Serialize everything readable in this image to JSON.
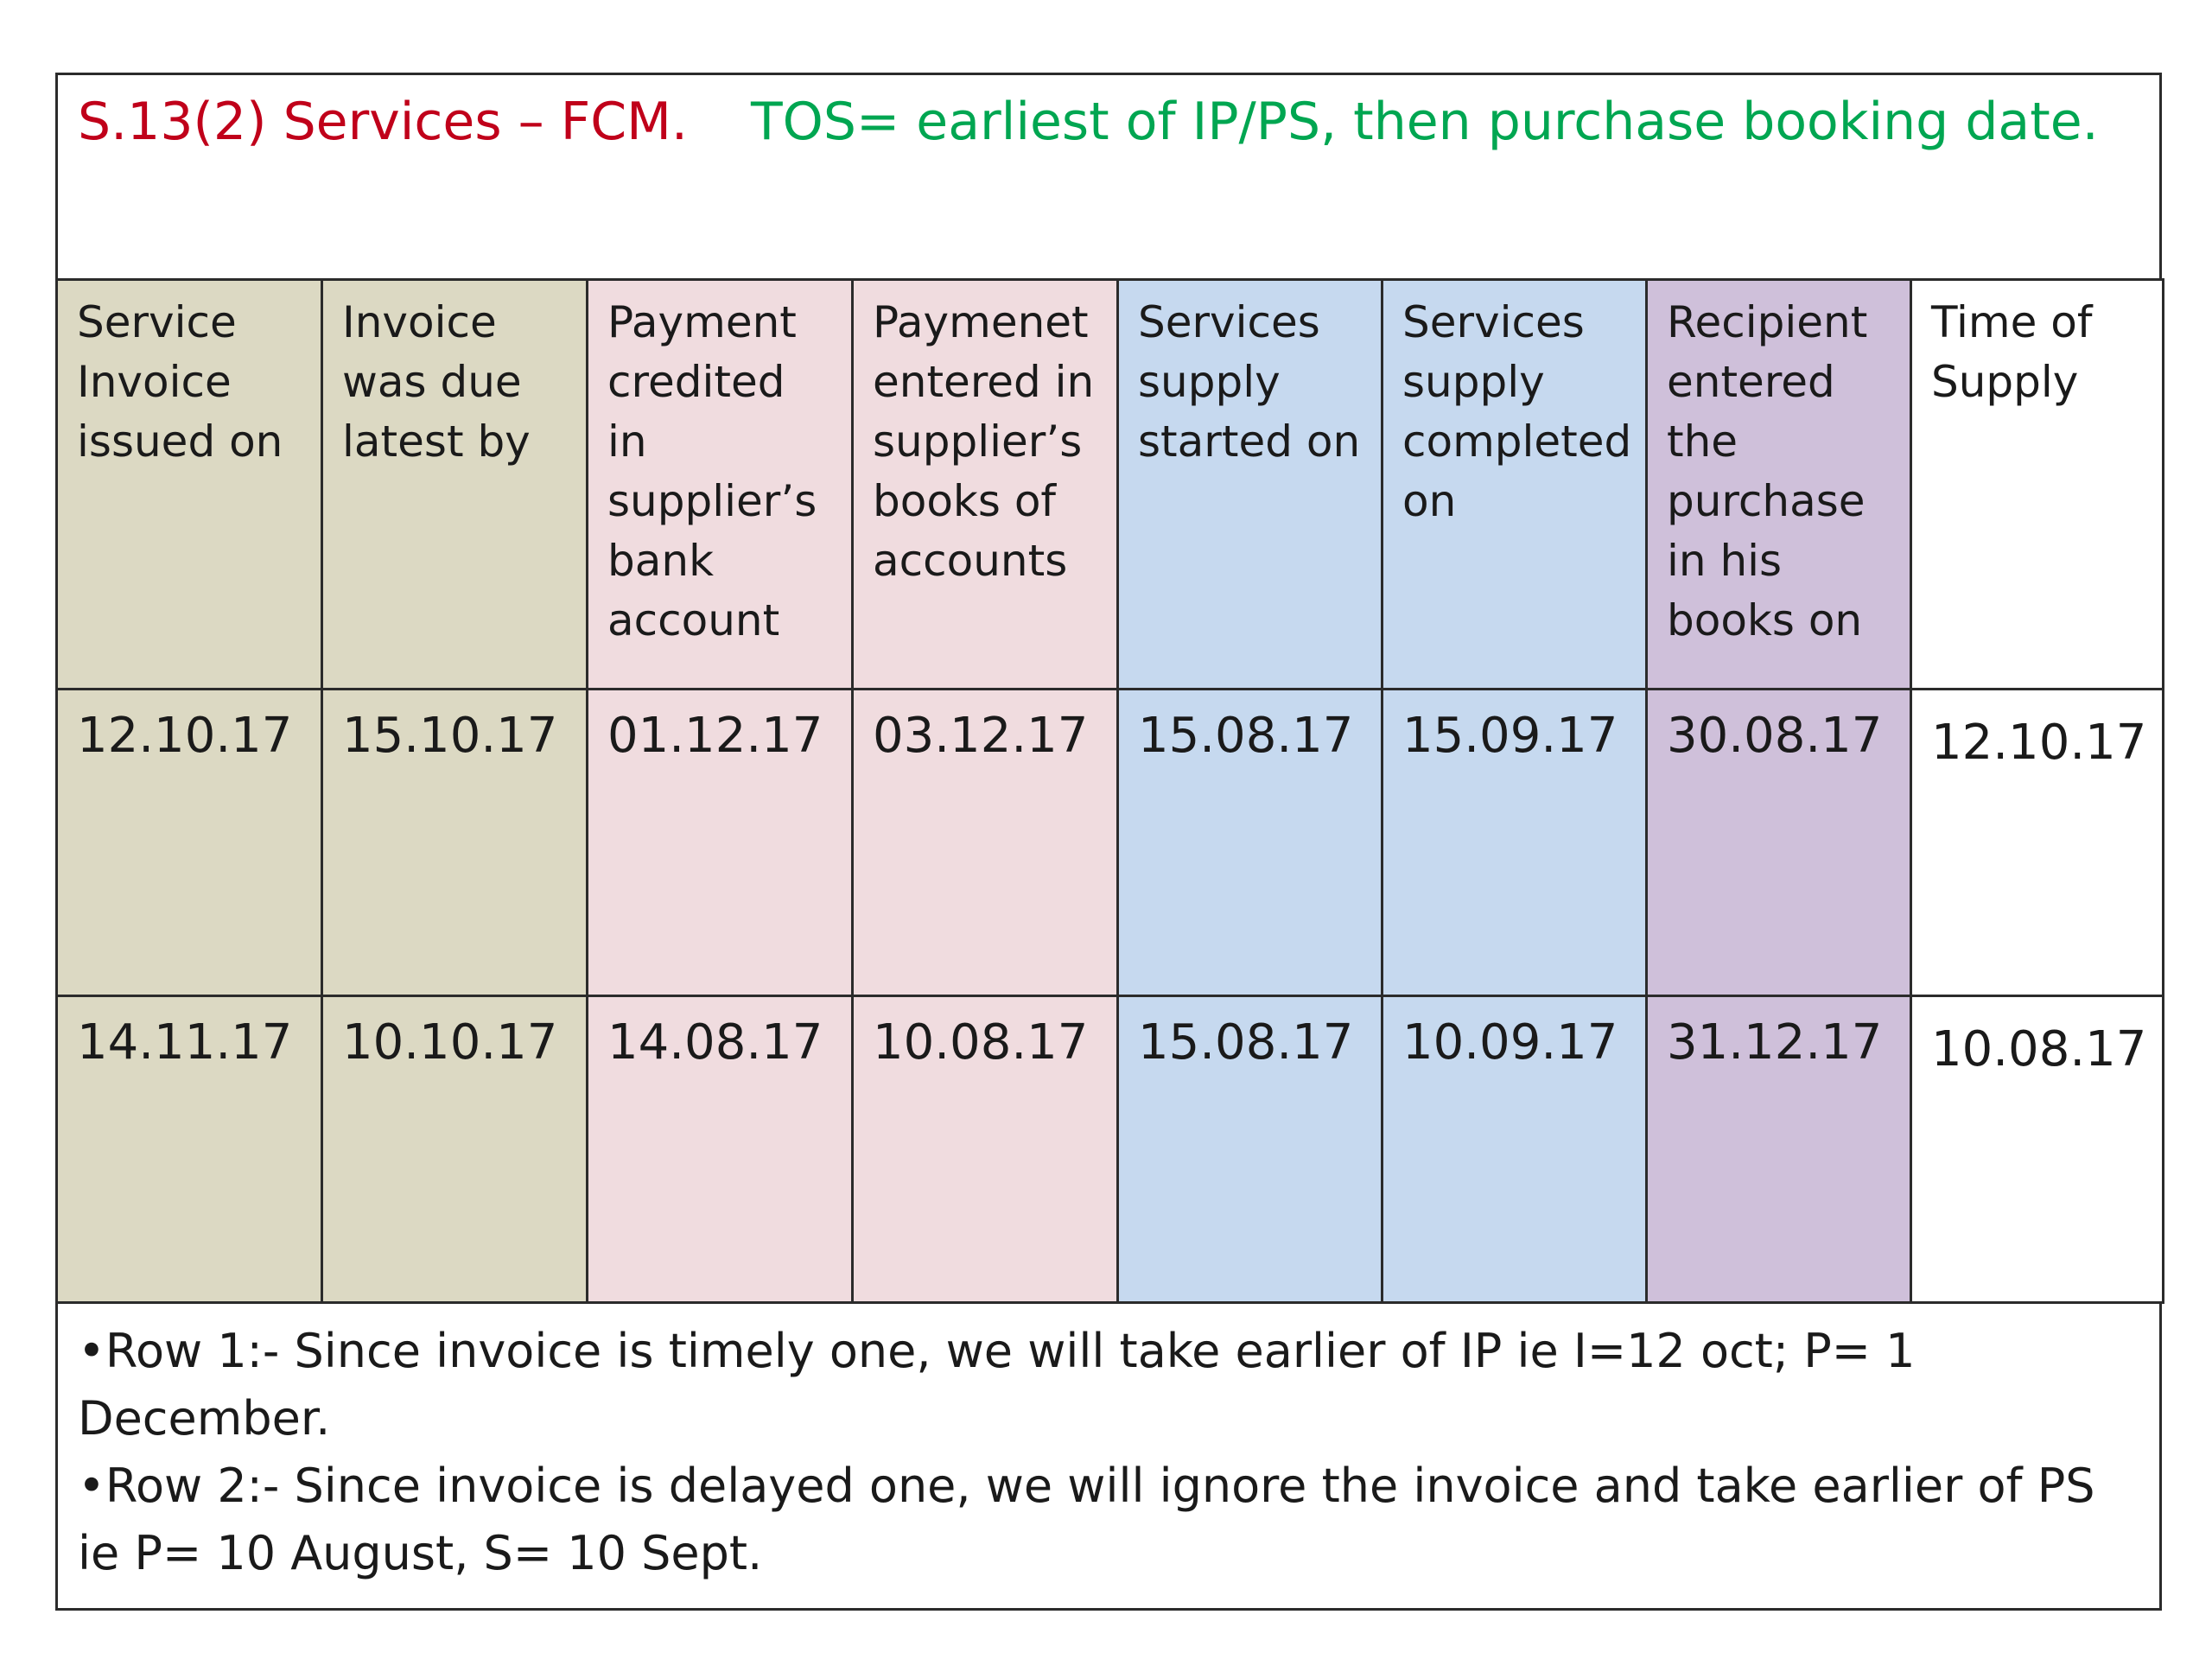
{
  "title": {
    "left": "S.13(2) Services – FCM.",
    "right": "TOS= earliest of IP/PS, then purchase booking date."
  },
  "table": {
    "headers": [
      "Service Invoice issued on",
      "Invoice was due latest by",
      "Payment credited in supplier’s bank account",
      "Paymenet entered in supplier’s books of accounts",
      "Services supply started on",
      "Services supply completed on",
      "Recipient entered the purchase in his books on",
      "Time of Supply"
    ],
    "rows": [
      [
        "12.10.17",
        "15.10.17",
        "01.12.17",
        "03.12.17",
        "15.08.17",
        "15.09.17",
        "30.08.17",
        "12.10.17"
      ],
      [
        "14.11.17",
        "10.10.17",
        "14.08.17",
        "10.08.17",
        "15.08.17",
        "10.09.17",
        "31.12.17",
        "10.08.17"
      ]
    ],
    "column_colors": [
      "#dcd9c3",
      "#dcd9c3",
      "#f0dcdf",
      "#f0dcdf",
      "#c6d9ef",
      "#c6d9ef",
      "#cfc0da",
      "#ffffff"
    ]
  },
  "notes": [
    "•Row 1:- Since invoice is timely one, we will take earlier of IP ie I=12 oct; P= 1 December.",
    "•Row 2:- Since invoice is delayed one, we will ignore the invoice and take earlier of PS ie P= 10 August, S= 10 Sept."
  ]
}
